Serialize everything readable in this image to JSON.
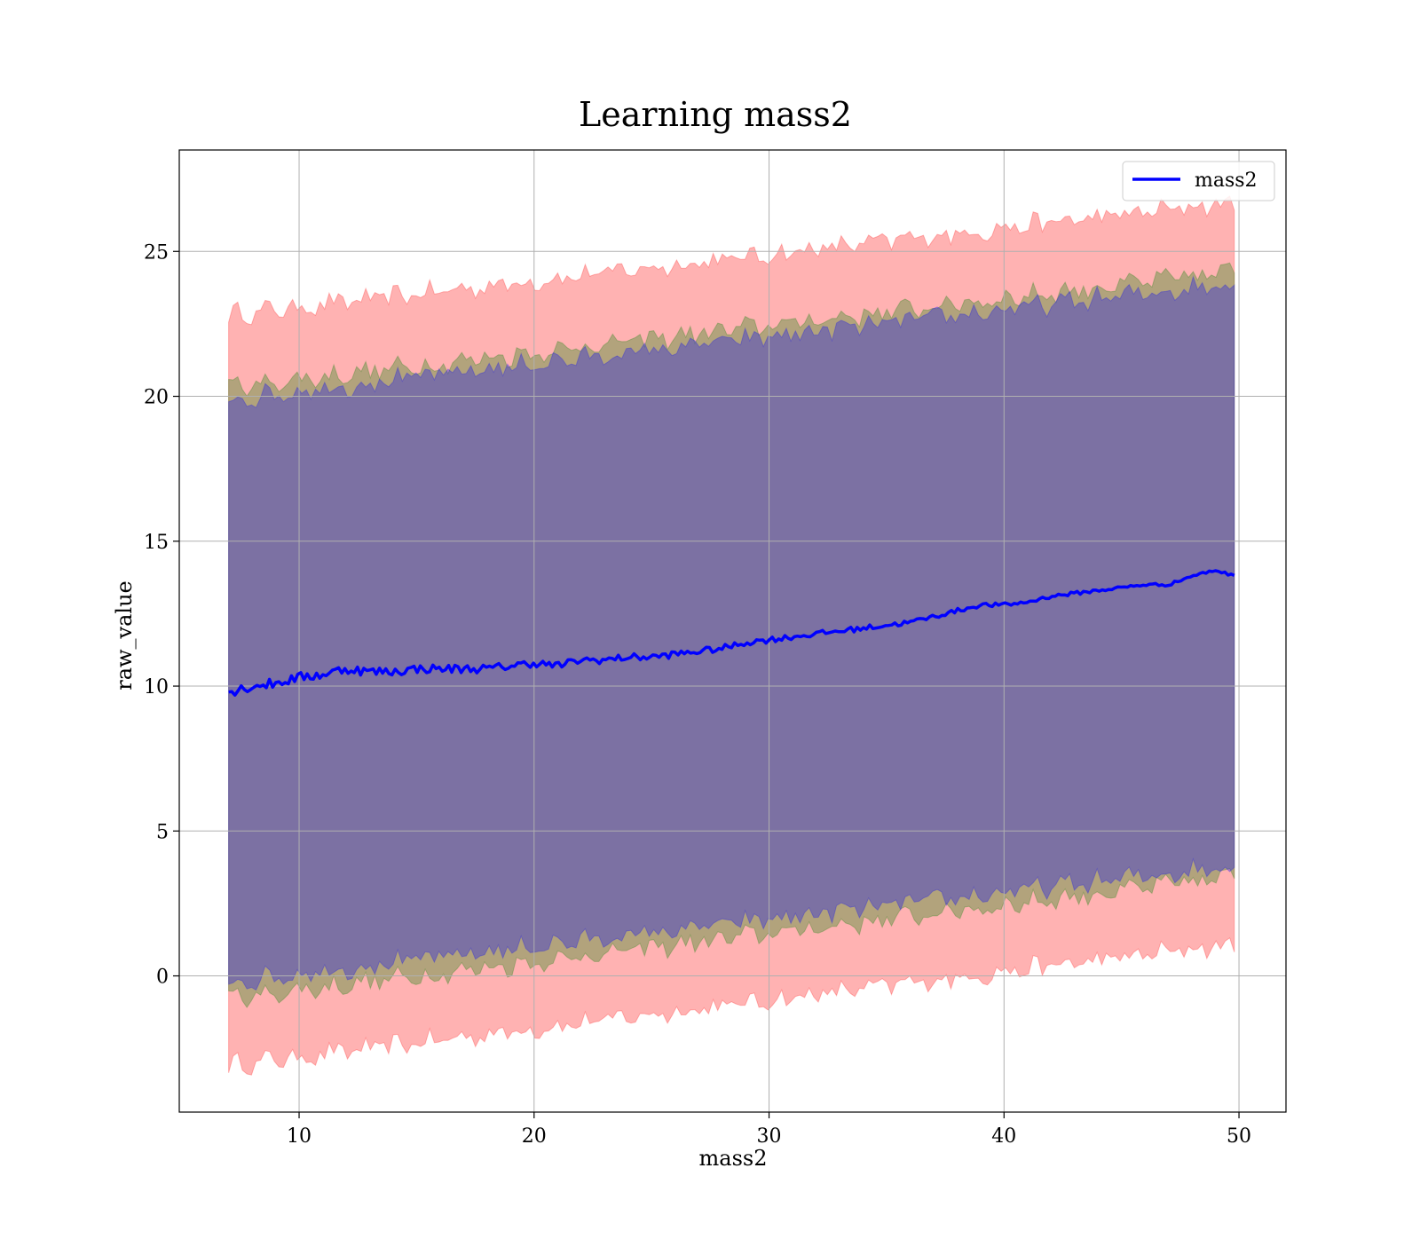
{
  "chart_data": {
    "type": "line",
    "title": "Learning mass2",
    "xlabel": "mass2",
    "ylabel": "raw_value",
    "xlim": [
      4.9,
      52.0
    ],
    "ylim": [
      -4.7,
      28.5
    ],
    "x_ticks": [
      10,
      20,
      30,
      40,
      50
    ],
    "y_ticks": [
      0,
      5,
      10,
      15,
      20,
      25
    ],
    "grid": true,
    "legend_position": "top-right",
    "legend": [
      {
        "label": "mass2",
        "color": "#0000ff"
      }
    ],
    "x_range": [
      7.0,
      49.8
    ],
    "series": [
      {
        "name": "mass2",
        "color": "#0000ff",
        "x": [
          7.0,
          8.0,
          9.0,
          10.0,
          11.0,
          12.0,
          13.0,
          14.0,
          15.0,
          16.0,
          17.0,
          18.0,
          19.0,
          20.0,
          21.0,
          22.0,
          23.0,
          24.0,
          25.0,
          26.0,
          27.0,
          28.0,
          29.0,
          30.0,
          31.0,
          32.0,
          33.0,
          34.0,
          35.0,
          36.0,
          37.0,
          38.0,
          39.0,
          40.0,
          41.0,
          42.0,
          43.0,
          44.0,
          45.0,
          46.0,
          47.0,
          48.0,
          49.0,
          49.8
        ],
        "y": [
          9.8,
          10.0,
          10.1,
          10.3,
          10.4,
          10.6,
          10.5,
          10.5,
          10.6,
          10.6,
          10.6,
          10.6,
          10.7,
          10.8,
          10.7,
          10.9,
          10.9,
          11.0,
          11.0,
          11.1,
          11.2,
          11.3,
          11.5,
          11.6,
          11.7,
          11.8,
          11.9,
          12.0,
          12.1,
          12.2,
          12.4,
          12.6,
          12.8,
          12.8,
          12.9,
          13.1,
          13.2,
          13.3,
          13.4,
          13.5,
          13.5,
          13.8,
          14.0,
          13.8
        ]
      }
    ],
    "bands": [
      {
        "color": "#ff0000",
        "opacity": 0.3,
        "upper_start": 22.8,
        "upper_end": 26.7,
        "lower_start": -3.1,
        "lower_end": 1.1
      },
      {
        "color": "#008000",
        "opacity": 0.3,
        "upper_start": 20.3,
        "upper_end": 24.3,
        "lower_start": -0.8,
        "lower_end": 3.4
      },
      {
        "color": "#0000ff",
        "opacity": 0.3,
        "upper_start": 19.9,
        "upper_end": 23.9,
        "lower_start": -0.2,
        "lower_end": 3.8
      }
    ]
  }
}
